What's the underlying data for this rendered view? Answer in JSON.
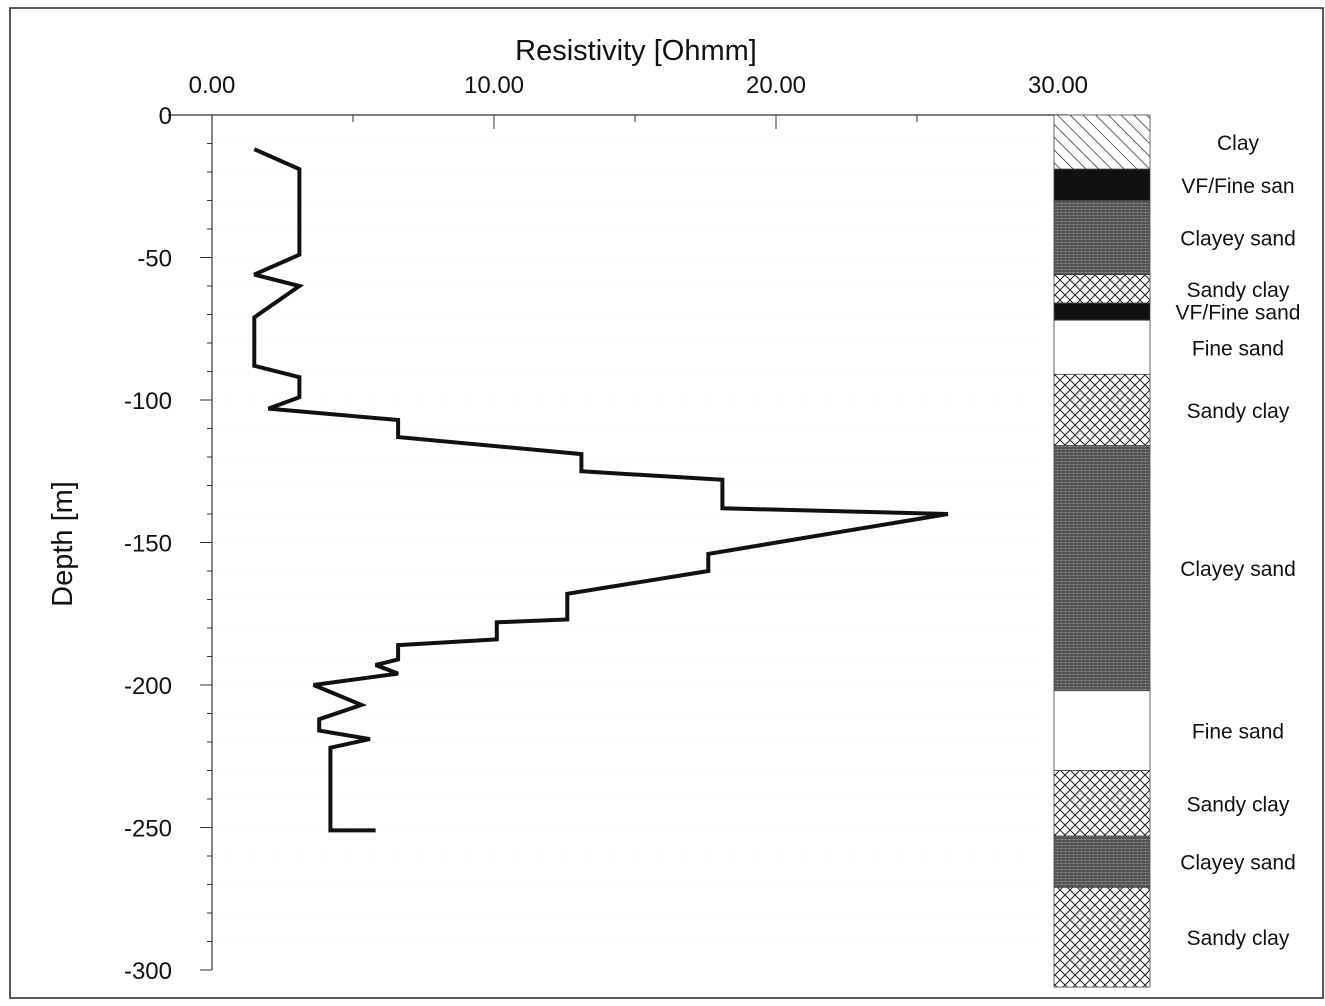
{
  "chart_data": {
    "type": "line",
    "xlabel": "Resistivity [Ohmm]",
    "ylabel": "Depth [m]",
    "xlim": [
      0,
      30
    ],
    "ylim": [
      -300,
      0
    ],
    "x_ticks": [
      {
        "value": 0,
        "label": "0.00"
      },
      {
        "value": 10,
        "label": "10.00"
      },
      {
        "value": 20,
        "label": "20.00"
      },
      {
        "value": 30,
        "label": "30.00"
      }
    ],
    "y_ticks": [
      {
        "value": 0,
        "label": "0"
      },
      {
        "value": -50,
        "label": "-50"
      },
      {
        "value": -100,
        "label": "-100"
      },
      {
        "value": -150,
        "label": "-150"
      },
      {
        "value": -200,
        "label": "-200"
      },
      {
        "value": -250,
        "label": "-250"
      },
      {
        "value": -300,
        "label": "-300"
      }
    ],
    "series": [
      {
        "points": [
          [
            1.5,
            -12
          ],
          [
            3.1,
            -19
          ],
          [
            3.1,
            -49
          ],
          [
            1.5,
            -56
          ],
          [
            3.1,
            -60
          ],
          [
            1.5,
            -71
          ],
          [
            1.5,
            -88
          ],
          [
            3.1,
            -92
          ],
          [
            3.1,
            -99
          ],
          [
            2.0,
            -103
          ],
          [
            6.6,
            -107
          ],
          [
            6.6,
            -113
          ],
          [
            13.1,
            -119
          ],
          [
            13.1,
            -125
          ],
          [
            18.1,
            -128
          ],
          [
            18.1,
            -138
          ],
          [
            26.1,
            -140
          ],
          [
            17.6,
            -154
          ],
          [
            17.6,
            -160
          ],
          [
            12.6,
            -168
          ],
          [
            12.6,
            -177
          ],
          [
            10.1,
            -178
          ],
          [
            10.1,
            -184
          ],
          [
            6.6,
            -186
          ],
          [
            6.6,
            -191
          ],
          [
            5.8,
            -193
          ],
          [
            6.6,
            -196
          ],
          [
            3.6,
            -200
          ],
          [
            5.3,
            -207
          ],
          [
            3.8,
            -212
          ],
          [
            3.8,
            -216
          ],
          [
            5.6,
            -219
          ],
          [
            4.2,
            -222
          ],
          [
            4.2,
            -251
          ],
          [
            5.8,
            -251
          ]
        ]
      }
    ],
    "lithology": [
      {
        "label": "Clay",
        "top": 0,
        "bottom": -19,
        "pattern": "hatch"
      },
      {
        "label": "VF/Fine san",
        "top": -19,
        "bottom": -30,
        "pattern": "black"
      },
      {
        "label": "Clayey sand",
        "top": -30,
        "bottom": -56,
        "pattern": "dense"
      },
      {
        "label": "Sandy clay",
        "top": -56,
        "bottom": -66,
        "pattern": "cross"
      },
      {
        "label": "VF/Fine sand",
        "top": -66,
        "bottom": -72,
        "pattern": "black"
      },
      {
        "label": "Fine sand",
        "top": -72,
        "bottom": -91,
        "pattern": "blank"
      },
      {
        "label": "Sandy clay",
        "top": -91,
        "bottom": -116,
        "pattern": "cross"
      },
      {
        "label": "Clayey sand",
        "top": -116,
        "bottom": -202,
        "pattern": "dense"
      },
      {
        "label": "Fine sand",
        "top": -202,
        "bottom": -230,
        "pattern": "blank"
      },
      {
        "label": "Sandy clay",
        "top": -230,
        "bottom": -253,
        "pattern": "cross"
      },
      {
        "label": "Clayey sand",
        "top": -253,
        "bottom": -271,
        "pattern": "dense"
      },
      {
        "label": "Sandy clay",
        "top": -271,
        "bottom": -306,
        "pattern": "cross"
      }
    ]
  }
}
